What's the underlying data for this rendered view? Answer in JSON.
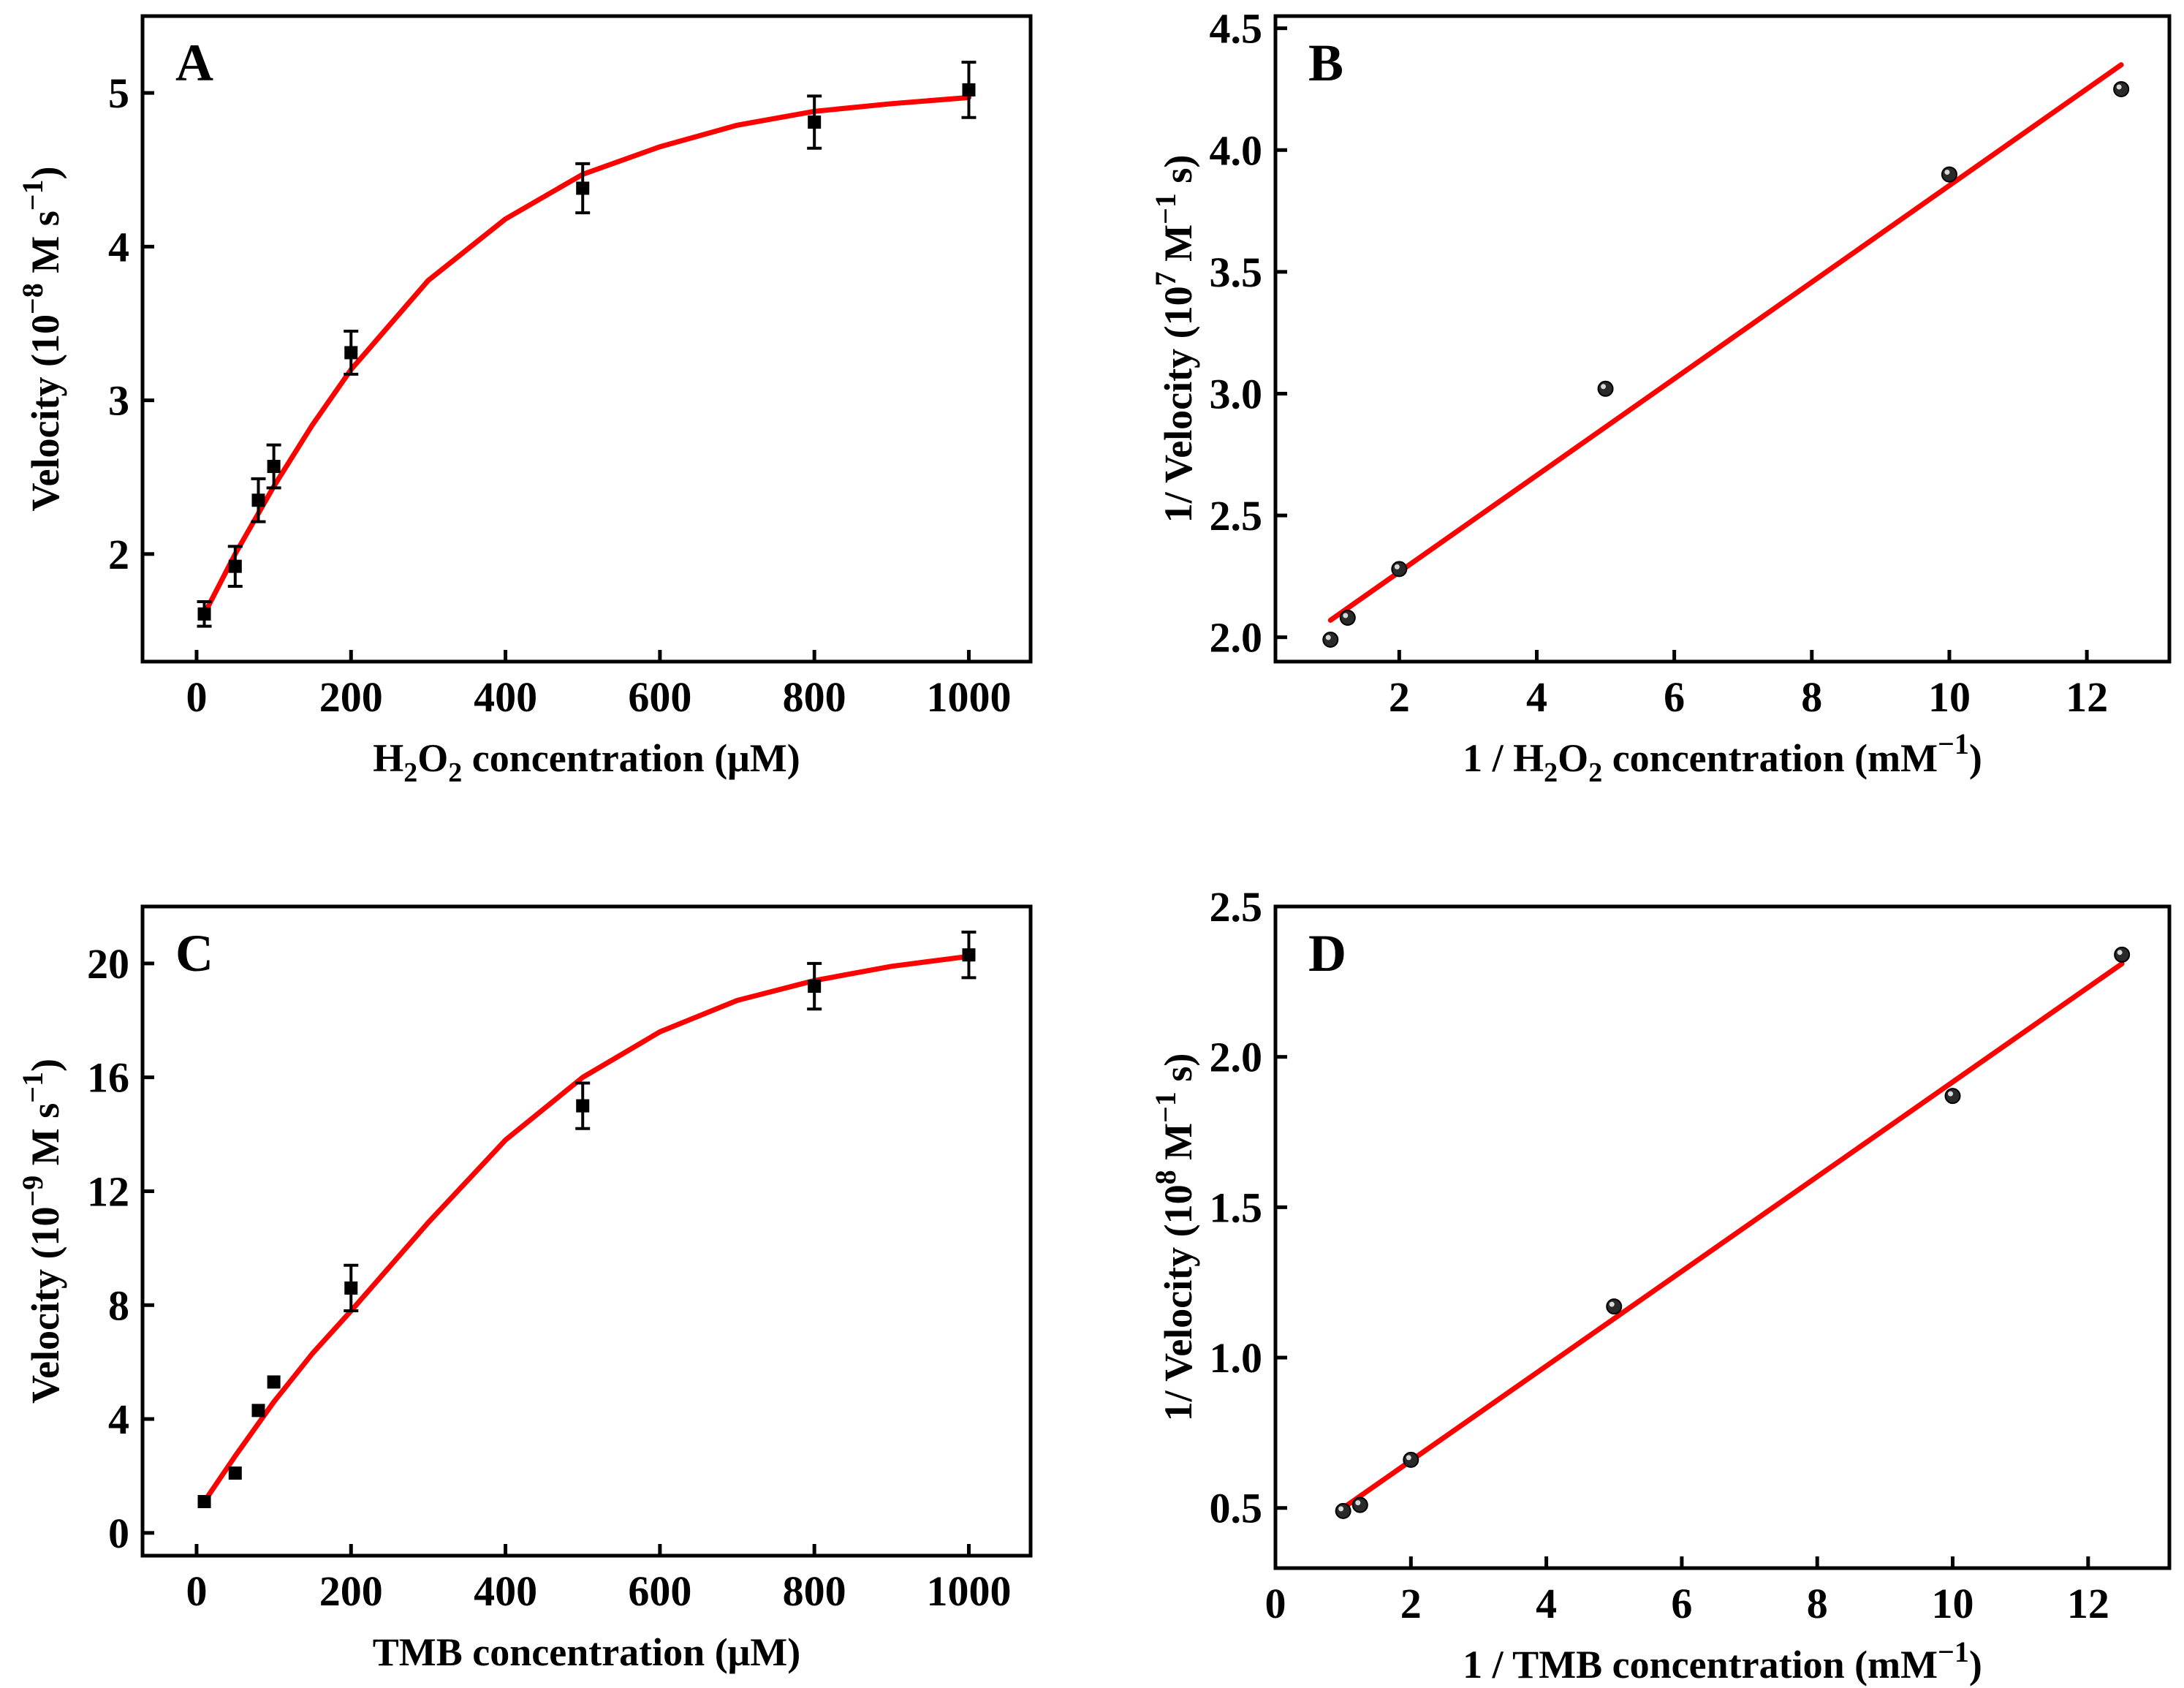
{
  "figure": {
    "colors": {
      "fit_line": "#ff0000",
      "marker": "#000000",
      "axis": "#000000"
    }
  },
  "chart_data": [
    {
      "panel": "A",
      "type": "scatter",
      "marker": "square",
      "has_errorbars": true,
      "fit": "curve",
      "xlabel_parts": [
        "H",
        "2",
        "O",
        "2",
        " concentration (μM)"
      ],
      "ylabel_parts": [
        "Velocity (10",
        "−8",
        " M s",
        "−1",
        ")"
      ],
      "xlim": [
        -70,
        1080
      ],
      "ylim": [
        1.3,
        5.5
      ],
      "xticks": [
        0,
        200,
        400,
        600,
        800,
        1000
      ],
      "xtick_labels": [
        "0",
        "200",
        "400",
        "600",
        "800",
        "1000"
      ],
      "yticks": [
        2,
        3,
        4,
        5
      ],
      "ytick_labels": [
        "2",
        "3",
        "4",
        "5"
      ],
      "points": [
        {
          "x": 10,
          "y": 1.61,
          "err": 0.08
        },
        {
          "x": 50,
          "y": 1.92,
          "err": 0.13
        },
        {
          "x": 80,
          "y": 2.35,
          "err": 0.14
        },
        {
          "x": 100,
          "y": 2.57,
          "err": 0.14
        },
        {
          "x": 200,
          "y": 3.31,
          "err": 0.14
        },
        {
          "x": 500,
          "y": 4.38,
          "err": 0.16
        },
        {
          "x": 800,
          "y": 4.81,
          "err": 0.17
        },
        {
          "x": 1000,
          "y": 5.02,
          "err": 0.18
        }
      ],
      "fit_line": [
        {
          "x": 10,
          "y": 1.61
        },
        {
          "x": 50,
          "y": 2.0
        },
        {
          "x": 100,
          "y": 2.44
        },
        {
          "x": 150,
          "y": 2.84
        },
        {
          "x": 200,
          "y": 3.2
        },
        {
          "x": 300,
          "y": 3.78
        },
        {
          "x": 400,
          "y": 4.18
        },
        {
          "x": 500,
          "y": 4.47
        },
        {
          "x": 600,
          "y": 4.65
        },
        {
          "x": 700,
          "y": 4.79
        },
        {
          "x": 800,
          "y": 4.88
        },
        {
          "x": 900,
          "y": 4.93
        },
        {
          "x": 1000,
          "y": 4.97
        }
      ]
    },
    {
      "panel": "B",
      "type": "scatter",
      "marker": "circle",
      "has_errorbars": false,
      "fit": "linear",
      "xlabel_parts": [
        "1 / H",
        "2",
        "O",
        "2",
        " concentration (mM",
        "−1",
        ")"
      ],
      "ylabel_parts": [
        "1/ Velocity (10",
        "7",
        " M",
        "−1",
        " s)"
      ],
      "xlim": [
        0.2,
        13.2
      ],
      "ylim": [
        1.9,
        4.55
      ],
      "xticks": [
        2,
        4,
        6,
        8,
        10,
        12
      ],
      "xtick_labels": [
        "2",
        "4",
        "6",
        "8",
        "10",
        "12"
      ],
      "yticks": [
        2.0,
        2.5,
        3.0,
        3.5,
        4.0,
        4.5
      ],
      "ytick_labels": [
        "2.0",
        "2.5",
        "3.0",
        "3.5",
        "4.0",
        "4.5"
      ],
      "points": [
        {
          "x": 1.0,
          "y": 1.99
        },
        {
          "x": 1.25,
          "y": 2.08
        },
        {
          "x": 2.0,
          "y": 2.28
        },
        {
          "x": 5.0,
          "y": 3.02
        },
        {
          "x": 10.0,
          "y": 3.9
        },
        {
          "x": 12.5,
          "y": 4.25
        }
      ],
      "fit_line": [
        {
          "x": 1.0,
          "y": 2.07
        },
        {
          "x": 12.5,
          "y": 4.35
        }
      ]
    },
    {
      "panel": "C",
      "type": "scatter",
      "marker": "square",
      "has_errorbars": true,
      "fit": "curve",
      "xlabel_parts": [
        "TMB concentration (μM)"
      ],
      "ylabel_parts": [
        "Velocity (10",
        "−9",
        " M s",
        "−1",
        ")"
      ],
      "xlim": [
        -70,
        1080
      ],
      "ylim": [
        -0.8,
        22
      ],
      "xticks": [
        0,
        200,
        400,
        600,
        800,
        1000
      ],
      "xtick_labels": [
        "0",
        "200",
        "400",
        "600",
        "800",
        "1000"
      ],
      "yticks": [
        0,
        4,
        8,
        12,
        16,
        20
      ],
      "ytick_labels": [
        "0",
        "4",
        "8",
        "12",
        "16",
        "20"
      ],
      "points": [
        {
          "x": 10,
          "y": 1.1,
          "err": 0
        },
        {
          "x": 50,
          "y": 2.1,
          "err": 0
        },
        {
          "x": 80,
          "y": 4.3,
          "err": 0
        },
        {
          "x": 100,
          "y": 5.3,
          "err": 0
        },
        {
          "x": 200,
          "y": 8.6,
          "err": 0.8
        },
        {
          "x": 500,
          "y": 15.0,
          "err": 0.8
        },
        {
          "x": 800,
          "y": 19.2,
          "err": 0.8
        },
        {
          "x": 1000,
          "y": 20.3,
          "err": 0.8
        }
      ],
      "fit_line": [
        {
          "x": 10,
          "y": 1.1
        },
        {
          "x": 50,
          "y": 2.7
        },
        {
          "x": 100,
          "y": 4.6
        },
        {
          "x": 150,
          "y": 6.3
        },
        {
          "x": 200,
          "y": 7.8
        },
        {
          "x": 300,
          "y": 10.9
        },
        {
          "x": 400,
          "y": 13.8
        },
        {
          "x": 500,
          "y": 16.0
        },
        {
          "x": 600,
          "y": 17.6
        },
        {
          "x": 700,
          "y": 18.7
        },
        {
          "x": 800,
          "y": 19.4
        },
        {
          "x": 900,
          "y": 19.9
        },
        {
          "x": 1000,
          "y": 20.25
        }
      ]
    },
    {
      "panel": "D",
      "type": "scatter",
      "marker": "circle",
      "has_errorbars": false,
      "fit": "linear",
      "xlabel_parts": [
        "1 / TMB concentration (mM",
        "−1",
        ")"
      ],
      "ylabel_parts": [
        "1/ Velocity (10",
        "8",
        " M",
        "−1",
        " s)"
      ],
      "xlim": [
        0,
        13.2
      ],
      "ylim": [
        0.3,
        2.5
      ],
      "xticks": [
        0,
        2,
        4,
        6,
        8,
        10,
        12
      ],
      "xtick_labels": [
        "0",
        "2",
        "4",
        "6",
        "8",
        "10",
        "12"
      ],
      "yticks": [
        0.5,
        1.0,
        1.5,
        2.0,
        2.5
      ],
      "ytick_labels": [
        "0.5",
        "1.0",
        "1.5",
        "2.0",
        "2.5"
      ],
      "points": [
        {
          "x": 1.0,
          "y": 0.49
        },
        {
          "x": 1.25,
          "y": 0.51
        },
        {
          "x": 2.0,
          "y": 0.66
        },
        {
          "x": 5.0,
          "y": 1.17
        },
        {
          "x": 10.0,
          "y": 1.87
        },
        {
          "x": 12.5,
          "y": 2.34
        }
      ],
      "fit_line": [
        {
          "x": 1.0,
          "y": 0.5
        },
        {
          "x": 12.5,
          "y": 2.31
        }
      ]
    }
  ]
}
